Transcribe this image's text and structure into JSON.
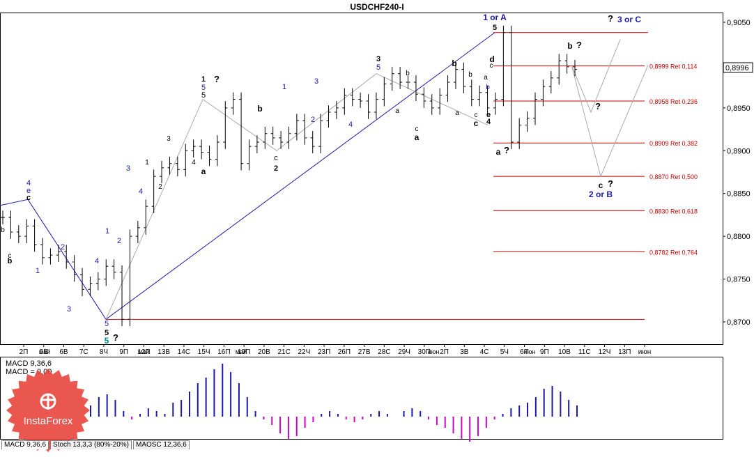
{
  "title": "USDCHF240-I",
  "price_axis": {
    "ticks": [
      "0,9050",
      "0,9000",
      "0,8950",
      "0,8900",
      "0,8850",
      "0,8800",
      "0,8750",
      "0,8700"
    ],
    "current_price": "0,8996"
  },
  "time_axis": {
    "labels": [
      "2П",
      "5В",
      "6В",
      "7С",
      "8Ч",
      "9П",
      "12П",
      "13В",
      "14С",
      "15Ч",
      "16П",
      "19П",
      "20В",
      "21С",
      "22Ч",
      "23П",
      "26П",
      "27В",
      "28С",
      "29Ч",
      "30П",
      "2П",
      "3В",
      "4С",
      "5Ч",
      "6П",
      "9П",
      "10В",
      "11С",
      "12Ч",
      "13П",
      "июн"
    ],
    "month_labels": [
      "май",
      "май",
      "май",
      "июн",
      "июн"
    ]
  },
  "fib_levels": [
    {
      "label": "0,8999 Ret 0,114"
    },
    {
      "label": "0,8958 Ret 0,236"
    },
    {
      "label": "0,8909 Ret 0,382"
    },
    {
      "label": "0,8870 Ret 0,500"
    },
    {
      "label": "0,8830 Ret 0,618"
    },
    {
      "label": "0,8782 Ret 0,764"
    }
  ],
  "wave_labels": {
    "top_1_or_A": "1 or A",
    "top_3_or_C": "3 or C",
    "bottom_2_or_B": "2 or B",
    "question": "?"
  },
  "indicator": {
    "macd_label": "MACD 9,36,6",
    "macd_value": "MACD = 0,00"
  },
  "tabs": [
    {
      "label": "MACD 9,36,6",
      "active": true
    },
    {
      "label": "Stoch 13,3,3 (80%-20%)",
      "active": false
    },
    {
      "label": "MAOSC 12,36,6",
      "active": false
    }
  ],
  "logo": {
    "text": "InstaForex"
  },
  "colors": {
    "candle": "#000000",
    "wave_line": "#1a1aaa",
    "projection": "#aaaaaa",
    "fib_line": "#cc0000",
    "fib_text": "#cc0000",
    "blue_label": "#1a1aaa",
    "teal_label": "#008b8b",
    "macd_pos": "#1a1aaa",
    "macd_neg": "#d000d0",
    "logo_red": "#e8453c"
  },
  "chart_data": {
    "type": "candlestick",
    "title": "USDCHF240-I",
    "ylim": [
      0.8675,
      0.9065
    ],
    "y_ticks": [
      0.905,
      0.9,
      0.895,
      0.89,
      0.885,
      0.88,
      0.875,
      0.87
    ],
    "close_path": [
      0.8822,
      0.8805,
      0.88,
      0.8812,
      0.879,
      0.8775,
      0.8778,
      0.8782,
      0.877,
      0.8755,
      0.8738,
      0.8745,
      0.875,
      0.8765,
      0.8758,
      0.8703,
      0.88,
      0.881,
      0.8835,
      0.887,
      0.888,
      0.8885,
      0.8878,
      0.89,
      0.8905,
      0.8898,
      0.889,
      0.891,
      0.895,
      0.896,
      0.8885,
      0.8905,
      0.891,
      0.892,
      0.8915,
      0.891,
      0.892,
      0.8935,
      0.8915,
      0.8905,
      0.8935,
      0.8945,
      0.895,
      0.8965,
      0.896,
      0.8958,
      0.8945,
      0.896,
      0.8978,
      0.899,
      0.898,
      0.898,
      0.8966,
      0.8958,
      0.895,
      0.8965,
      0.898,
      0.8995,
      0.8975,
      0.896,
      0.8968,
      0.895,
      0.896,
      0.9038,
      0.891,
      0.893,
      0.8938,
      0.896,
      0.8975,
      0.8985,
      0.9005,
      0.8998,
      0.8995
    ],
    "annotations": [
      {
        "text": "USDCHF240-I"
      },
      {
        "text": "1 or A"
      },
      {
        "text": "3 or C"
      },
      {
        "text": "2 or B"
      }
    ],
    "fibonacci_retracement": [
      {
        "price": 0.8999,
        "ratio": 0.114
      },
      {
        "price": 0.8958,
        "ratio": 0.236
      },
      {
        "price": 0.8909,
        "ratio": 0.382
      },
      {
        "price": 0.887,
        "ratio": 0.5
      },
      {
        "price": 0.883,
        "ratio": 0.618
      },
      {
        "price": 0.8782,
        "ratio": 0.764
      }
    ],
    "last_price": 0.8996,
    "indicator": {
      "name": "MACD 9,36,6",
      "histogram": [
        0.2,
        0.35,
        0.4,
        0.3,
        0.1,
        -0.05,
        0.05,
        0.15,
        0.1,
        0.05,
        0.25,
        0.3,
        0.45,
        0.6,
        0.7,
        0.85,
        0.95,
        0.8,
        0.6,
        0.35,
        0.1,
        -0.05,
        -0.15,
        -0.3,
        -0.4,
        -0.35,
        -0.2,
        -0.1,
        0.05,
        0.1,
        0.05,
        -0.05,
        -0.1,
        -0.05,
        0.05,
        0.1,
        0.05,
        0.0,
        0.1,
        0.15,
        0.1,
        -0.05,
        -0.15,
        -0.2,
        -0.3,
        -0.4,
        -0.45,
        -0.35,
        -0.2,
        -0.05,
        0.05,
        0.15,
        0.2,
        0.25,
        0.35,
        0.5,
        0.55,
        0.45,
        0.3,
        0.2
      ]
    }
  }
}
